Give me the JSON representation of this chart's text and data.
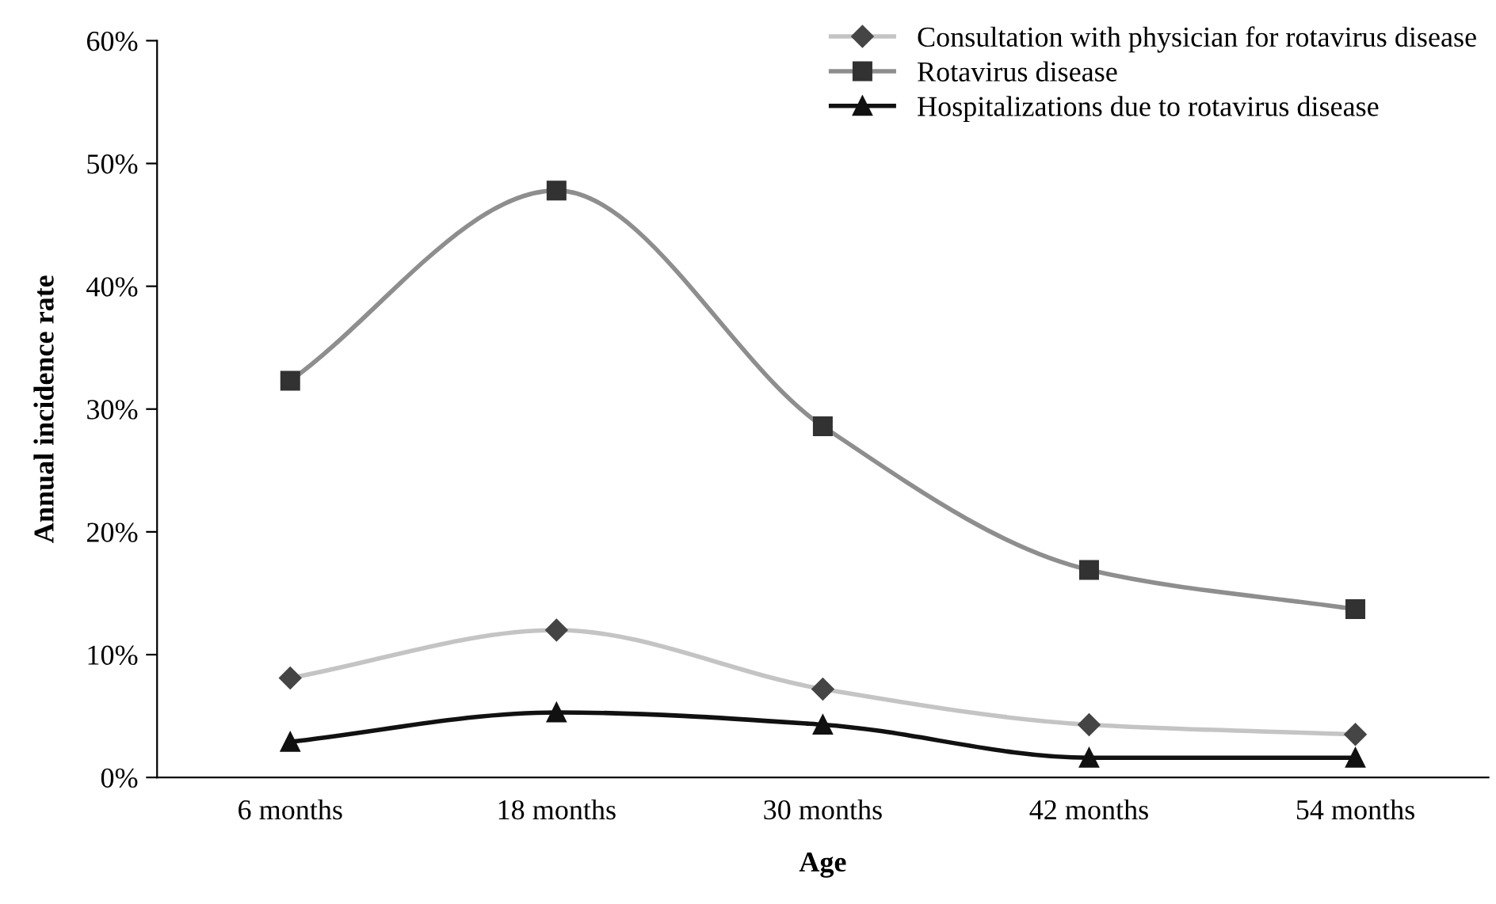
{
  "chart_data": {
    "type": "line",
    "xlabel": "Age",
    "ylabel": "Annual incidence rate",
    "categories": [
      "6 months",
      "18 months",
      "30 months",
      "42 months",
      "54 months"
    ],
    "series": [
      {
        "name": "Consultation with physician for rotavirus disease",
        "color": "#c4c4c4",
        "marker": "diamond",
        "values": [
          8.1,
          12.0,
          7.2,
          4.3,
          3.5
        ]
      },
      {
        "name": "Rotavirus disease",
        "color": "#8e8e8e",
        "marker": "square",
        "values": [
          32.3,
          47.8,
          28.6,
          16.9,
          13.7
        ]
      },
      {
        "name": "Hospitalizations due to rotavirus disease",
        "color": "#111111",
        "marker": "triangle",
        "values": [
          2.9,
          5.3,
          4.3,
          1.6,
          1.6
        ]
      }
    ],
    "ylim": [
      0,
      60
    ],
    "yticks": [
      {
        "value": 0,
        "label": "0%"
      },
      {
        "value": 10,
        "label": "10%"
      },
      {
        "value": 20,
        "label": "20%"
      },
      {
        "value": 30,
        "label": "30%"
      },
      {
        "value": 40,
        "label": "40%"
      },
      {
        "value": 50,
        "label": "50%"
      },
      {
        "value": 60,
        "label": "60%"
      }
    ],
    "grid": false,
    "legend": "top right",
    "line_style": "solid"
  }
}
